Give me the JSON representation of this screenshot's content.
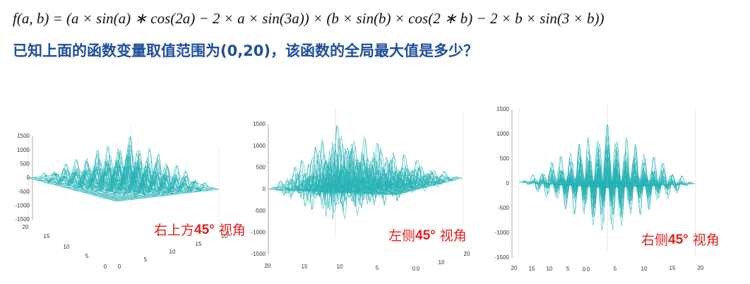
{
  "formula": "f(a, b) = (a × sin(a) ∗ cos(2a) − 2 × a × sin(3a)) × (b × sin(b) × cos(2 ∗ b) − 2 × b × sin(3 × b))",
  "question": "已知上面的函数变量取值范围为(0,20)，该函数的全局最大值是多少？",
  "plots": [
    {
      "z_ticks": [
        1500,
        1000,
        500,
        0,
        -500,
        -1000,
        -1500
      ],
      "a_ticks": [
        20,
        15,
        10,
        5,
        0
      ],
      "b_ticks": [
        0,
        5,
        10,
        15,
        20
      ],
      "caption": {
        "prefix": "右上方",
        "angle": "45°",
        "suffix": "视角"
      }
    },
    {
      "z_ticks": [
        1500,
        1000,
        500,
        0,
        -500,
        -1000,
        -1500
      ],
      "a_ticks": [
        20,
        15,
        10,
        5,
        0
      ],
      "b_ticks": [
        0,
        10,
        20
      ],
      "caption": {
        "prefix": "左侧",
        "angle": "45°",
        "suffix": "视角"
      }
    },
    {
      "z_ticks": [
        1500,
        1000,
        500,
        0,
        -500,
        -1000,
        -1500
      ],
      "a_ticks": [
        20,
        15,
        10,
        5,
        0
      ],
      "b_ticks": [
        0,
        5,
        10,
        15,
        20
      ],
      "caption": {
        "prefix": "右侧",
        "angle": "45°",
        "suffix": "视角"
      }
    }
  ]
}
